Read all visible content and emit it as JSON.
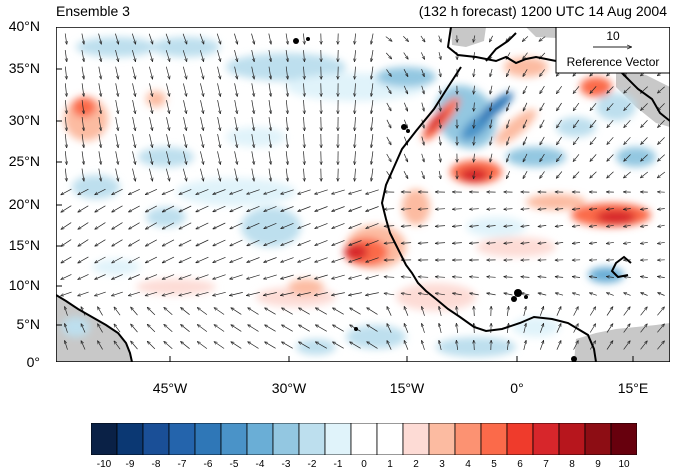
{
  "title_left": "Ensemble 3",
  "title_right": "(132 h forecast) 1200 UTC 14 Aug 2004",
  "reference_vector": {
    "magnitude": "10",
    "label": "Reference Vector"
  },
  "axes": {
    "y_ticks": [
      "40°N",
      "35°N",
      "30°N",
      "25°N",
      "20°N",
      "15°N",
      "10°N",
      "5°N",
      "0°"
    ],
    "x_ticks": [
      "45°W",
      "30°W",
      "15°W",
      "0°",
      "15°E"
    ]
  },
  "colorbar": {
    "labels": [
      "-10",
      "-9",
      "-8",
      "-7",
      "-6",
      "-5",
      "-4",
      "-3",
      "-2",
      "-1",
      "0",
      "1",
      "2",
      "3",
      "4",
      "5",
      "6",
      "7",
      "8",
      "9",
      "10"
    ],
    "colors": [
      "#0a2146",
      "#0b3873",
      "#1a4f97",
      "#2464ac",
      "#2f77b7",
      "#4a93c8",
      "#6aaed6",
      "#93c7e1",
      "#bddfee",
      "#e0f3fa",
      "#ffffff",
      "#ffffff",
      "#fddbd5",
      "#fcbba1",
      "#fc9272",
      "#fb6a4a",
      "#ef3b2c",
      "#d7262b",
      "#b7161d",
      "#8d0d14",
      "#67000d"
    ]
  },
  "colors": {
    "land_mask": "#c8c8c8",
    "coastline": "#000000"
  }
}
